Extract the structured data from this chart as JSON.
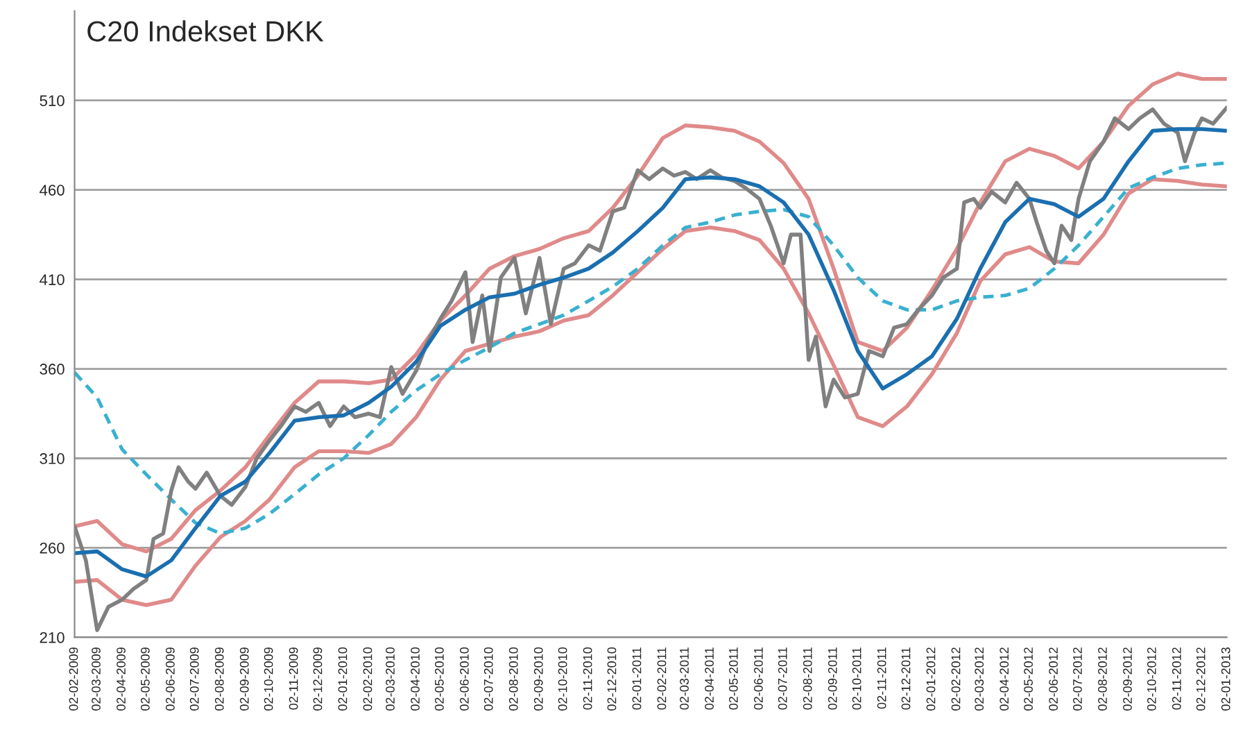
{
  "chart_data": {
    "type": "line",
    "title": "C20 Indekset DKK",
    "x": [
      "2009-02-02",
      "2009-03-02",
      "2009-04-02",
      "2009-05-02",
      "2009-06-02",
      "2009-07-02",
      "2009-08-02",
      "2009-09-02",
      "2009-10-02",
      "2009-11-02",
      "2009-12-02",
      "2010-01-02",
      "2010-02-02",
      "2010-03-02",
      "2010-04-02",
      "2010-05-02",
      "2010-06-02",
      "2010-07-02",
      "2010-08-02",
      "2010-09-02",
      "2010-10-02",
      "2010-11-02",
      "2010-12-02",
      "2011-01-02",
      "2011-02-02",
      "2011-03-02",
      "2011-04-02",
      "2011-05-02",
      "2011-06-02",
      "2011-07-02",
      "2011-08-02",
      "2011-09-02",
      "2011-10-02",
      "2011-11-02",
      "2011-12-02",
      "2012-01-02",
      "2012-02-02",
      "2012-03-02",
      "2012-04-02",
      "2012-05-02",
      "2012-06-02",
      "2012-07-02",
      "2012-08-02",
      "2012-09-02",
      "2012-10-02",
      "2012-11-02",
      "2012-12-02",
      "2013-01-02"
    ],
    "series": [
      {
        "color": "#e08a8a",
        "line_style": "solid",
        "values": [
          272,
          275,
          262,
          258,
          265,
          281,
          292,
          305,
          323,
          341,
          353,
          353,
          352,
          354,
          368,
          387,
          401,
          416,
          423,
          427,
          433,
          437,
          450,
          468,
          489,
          496,
          495,
          493,
          487,
          475,
          455,
          416,
          375,
          370,
          383,
          404,
          427,
          453,
          476,
          483,
          479,
          472,
          487,
          507,
          519,
          525,
          522,
          522
        ]
      },
      {
        "color": "#e08a8a",
        "line_style": "solid",
        "values": [
          241,
          242,
          231,
          228,
          231,
          250,
          266,
          275,
          287,
          305,
          314,
          314,
          313,
          318,
          333,
          354,
          370,
          374,
          378,
          381,
          387,
          390,
          401,
          414,
          427,
          437,
          439,
          437,
          432,
          416,
          391,
          362,
          333,
          328,
          339,
          357,
          380,
          409,
          424,
          428,
          420,
          419,
          435,
          458,
          466,
          465,
          463,
          462
        ]
      },
      {
        "color": "#3ab0d0",
        "line_style": "dashed",
        "values": [
          358,
          344,
          315,
          301,
          287,
          274,
          268,
          271,
          279,
          290,
          301,
          310,
          323,
          336,
          348,
          357,
          365,
          372,
          380,
          385,
          390,
          398,
          406,
          416,
          429,
          439,
          442,
          446,
          448,
          449,
          445,
          429,
          411,
          398,
          393,
          393,
          398,
          400,
          401,
          405,
          416,
          429,
          445,
          461,
          467,
          472,
          474,
          475
        ]
      },
      {
        "color": "#808080",
        "line_style": "solid",
        "x": [
          "2009-02-02",
          "2009-02-16",
          "2009-03-02",
          "2009-03-16",
          "2009-04-02",
          "2009-04-16",
          "2009-05-02",
          "2009-05-11",
          "2009-05-23",
          "2009-06-02",
          "2009-06-11",
          "2009-06-23",
          "2009-07-02",
          "2009-07-16",
          "2009-08-02",
          "2009-08-16",
          "2009-09-02",
          "2009-09-16",
          "2009-10-02",
          "2009-10-16",
          "2009-11-02",
          "2009-11-16",
          "2009-12-02",
          "2009-12-16",
          "2010-01-02",
          "2010-01-16",
          "2010-02-02",
          "2010-02-16",
          "2010-03-02",
          "2010-03-16",
          "2010-04-02",
          "2010-04-16",
          "2010-05-02",
          "2010-05-16",
          "2010-06-02",
          "2010-06-11",
          "2010-06-23",
          "2010-07-02",
          "2010-07-16",
          "2010-08-02",
          "2010-08-16",
          "2010-09-02",
          "2010-09-16",
          "2010-10-02",
          "2010-10-16",
          "2010-11-02",
          "2010-11-16",
          "2010-12-02",
          "2010-12-16",
          "2011-01-02",
          "2011-01-16",
          "2011-02-02",
          "2011-02-16",
          "2011-03-02",
          "2011-03-16",
          "2011-04-02",
          "2011-04-16",
          "2011-05-02",
          "2011-05-16",
          "2011-06-02",
          "2011-06-16",
          "2011-07-02",
          "2011-07-11",
          "2011-07-23",
          "2011-08-02",
          "2011-08-11",
          "2011-08-23",
          "2011-09-02",
          "2011-09-16",
          "2011-10-02",
          "2011-10-16",
          "2011-11-02",
          "2011-11-16",
          "2011-12-02",
          "2011-12-16",
          "2012-01-02",
          "2012-01-16",
          "2012-02-02",
          "2012-02-11",
          "2012-02-23",
          "2012-03-02",
          "2012-03-16",
          "2012-04-02",
          "2012-04-16",
          "2012-05-02",
          "2012-05-11",
          "2012-05-23",
          "2012-06-02",
          "2012-06-11",
          "2012-06-23",
          "2012-07-02",
          "2012-07-16",
          "2012-08-02",
          "2012-08-16",
          "2012-09-02",
          "2012-09-16",
          "2012-10-02",
          "2012-10-16",
          "2012-11-02",
          "2012-11-11",
          "2012-11-23",
          "2012-12-02",
          "2012-12-16",
          "2013-01-02"
        ],
        "values": [
          272,
          253,
          214,
          227,
          231,
          237,
          242,
          265,
          268,
          292,
          305,
          297,
          293,
          302,
          289,
          284,
          294,
          310,
          320,
          328,
          339,
          336,
          341,
          328,
          339,
          333,
          335,
          333,
          361,
          346,
          359,
          375,
          388,
          398,
          414,
          375,
          401,
          370,
          411,
          422,
          391,
          422,
          385,
          416,
          419,
          429,
          426,
          448,
          450,
          471,
          466,
          472,
          468,
          470,
          466,
          471,
          467,
          465,
          461,
          455,
          440,
          419,
          435,
          435,
          365,
          378,
          339,
          354,
          344,
          346,
          370,
          367,
          383,
          385,
          393,
          401,
          411,
          416,
          453,
          455,
          450,
          459,
          453,
          464,
          455,
          442,
          426,
          419,
          440,
          432,
          455,
          476,
          487,
          500,
          494,
          500,
          505,
          497,
          492,
          476,
          492,
          500,
          497,
          506
        ]
      },
      {
        "color": "#1a6fb0",
        "line_style": "solid",
        "values": [
          257,
          258,
          248,
          244,
          253,
          271,
          289,
          297,
          313,
          331,
          333,
          334,
          341,
          350,
          364,
          384,
          393,
          400,
          402,
          407,
          411,
          416,
          425,
          437,
          450,
          466,
          467,
          466,
          462,
          453,
          435,
          404,
          370,
          349,
          357,
          367,
          388,
          416,
          442,
          455,
          452,
          445,
          455,
          476,
          493,
          494,
          494,
          493
        ]
      }
    ],
    "xlim": [
      "2009-02-02",
      "2013-01-02"
    ],
    "xticks": [
      {
        "value": "2009-02-02",
        "label": "02-02-2009"
      },
      {
        "value": "2009-03-02",
        "label": "02-03-2009"
      },
      {
        "value": "2009-04-02",
        "label": "02-04-2009"
      },
      {
        "value": "2009-05-02",
        "label": "02-05-2009"
      },
      {
        "value": "2009-06-02",
        "label": "02-06-2009"
      },
      {
        "value": "2009-07-02",
        "label": "02-07-2009"
      },
      {
        "value": "2009-08-02",
        "label": "02-08-2009"
      },
      {
        "value": "2009-09-02",
        "label": "02-09-2009"
      },
      {
        "value": "2009-10-02",
        "label": "02-10-2009"
      },
      {
        "value": "2009-11-02",
        "label": "02-11-2009"
      },
      {
        "value": "2009-12-02",
        "label": "02-12-2009"
      },
      {
        "value": "2010-01-02",
        "label": "02-01-2010"
      },
      {
        "value": "2010-02-02",
        "label": "02-02-2010"
      },
      {
        "value": "2010-03-02",
        "label": "02-03-2010"
      },
      {
        "value": "2010-04-02",
        "label": "02-04-2010"
      },
      {
        "value": "2010-05-02",
        "label": "02-05-2010"
      },
      {
        "value": "2010-06-02",
        "label": "02-06-2010"
      },
      {
        "value": "2010-07-02",
        "label": "02-07-2010"
      },
      {
        "value": "2010-08-02",
        "label": "02-08-2010"
      },
      {
        "value": "2010-09-02",
        "label": "02-09-2010"
      },
      {
        "value": "2010-10-02",
        "label": "02-10-2010"
      },
      {
        "value": "2010-11-02",
        "label": "02-11-2010"
      },
      {
        "value": "2010-12-02",
        "label": "02-12-2010"
      },
      {
        "value": "2011-01-02",
        "label": "02-01-2011"
      },
      {
        "value": "2011-02-02",
        "label": "02-02-2011"
      },
      {
        "value": "2011-03-02",
        "label": "02-03-2011"
      },
      {
        "value": "2011-04-02",
        "label": "02-04-2011"
      },
      {
        "value": "2011-05-02",
        "label": "02-05-2011"
      },
      {
        "value": "2011-06-02",
        "label": "02-06-2011"
      },
      {
        "value": "2011-07-02",
        "label": "02-07-2011"
      },
      {
        "value": "2011-08-02",
        "label": "02-08-2011"
      },
      {
        "value": "2011-09-02",
        "label": "02-09-2011"
      },
      {
        "value": "2011-10-02",
        "label": "02-10-2011"
      },
      {
        "value": "2011-11-02",
        "label": "02-11-2011"
      },
      {
        "value": "2011-12-02",
        "label": "02-12-2011"
      },
      {
        "value": "2012-01-02",
        "label": "02-01-2012"
      },
      {
        "value": "2012-02-02",
        "label": "02-02-2012"
      },
      {
        "value": "2012-03-02",
        "label": "02-03-2012"
      },
      {
        "value": "2012-04-02",
        "label": "02-04-2012"
      },
      {
        "value": "2012-05-02",
        "label": "02-05-2012"
      },
      {
        "value": "2012-06-02",
        "label": "02-06-2012"
      },
      {
        "value": "2012-07-02",
        "label": "02-07-2012"
      },
      {
        "value": "2012-08-02",
        "label": "02-08-2012"
      },
      {
        "value": "2012-09-02",
        "label": "02-09-2012"
      },
      {
        "value": "2012-10-02",
        "label": "02-10-2012"
      },
      {
        "value": "2012-11-02",
        "label": "02-11-2012"
      },
      {
        "value": "2012-12-02",
        "label": "02-12-2012"
      },
      {
        "value": "2013-01-02",
        "label": "02-01-2013"
      }
    ],
    "ylim": [
      210,
      560
    ],
    "yticks": [
      210,
      260,
      310,
      360,
      410,
      460,
      510
    ],
    "grid": "y",
    "legend": false
  }
}
